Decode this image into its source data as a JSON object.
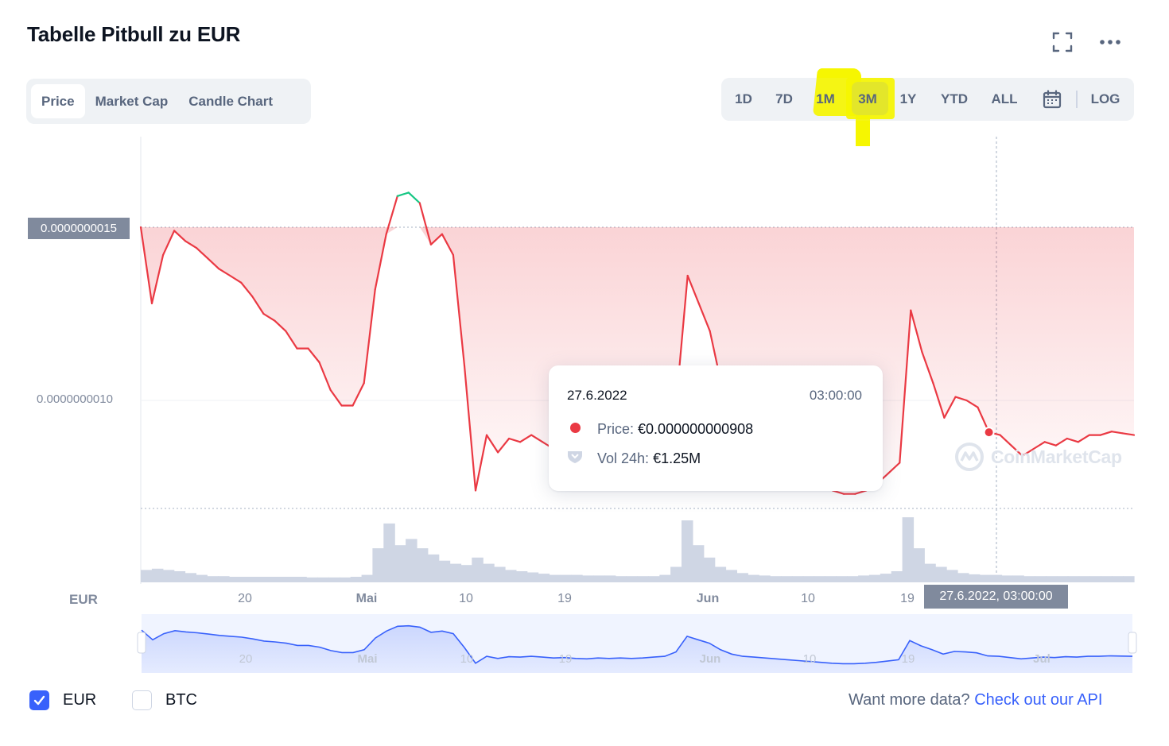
{
  "header": {
    "title": "Tabelle Pitbull zu EUR"
  },
  "tabs": [
    {
      "label": "Price",
      "active": true
    },
    {
      "label": "Market Cap",
      "active": false
    },
    {
      "label": "Candle Chart",
      "active": false
    }
  ],
  "ranges": [
    {
      "label": "1D"
    },
    {
      "label": "7D"
    },
    {
      "label": "1M"
    },
    {
      "label": "3M",
      "active": true
    },
    {
      "label": "1Y"
    },
    {
      "label": "YTD"
    },
    {
      "label": "ALL"
    }
  ],
  "log_label": "LOG",
  "icons": {
    "fullscreen": "fullscreen-icon",
    "more": "more-horizontal-icon",
    "calendar": "calendar-icon",
    "check": "check-icon",
    "volume": "volume-shield-icon",
    "watermark": "coinmarketcap-logo"
  },
  "colors": {
    "up": "#16c784",
    "down": "#ea3943",
    "volume": "#cfd6e4",
    "navigator_line": "#3861fb",
    "highlight": "#f5f500"
  },
  "tooltip": {
    "date": "27.6.2022",
    "time": "03:00:00",
    "price_label": "Price:",
    "price_value": "€0.000000000908",
    "volume_label": "Vol 24h:",
    "volume_value": "€1.25M"
  },
  "crosshair_label": "27.6.2022, 03:00:00",
  "watermark_text": "CoinMarketCap",
  "currency_label": "EUR",
  "currencies": [
    {
      "label": "EUR",
      "checked": true
    },
    {
      "label": "BTC",
      "checked": false
    }
  ],
  "footer": {
    "prefix": "Want more data?",
    "link": "Check out our API"
  },
  "chart_data": {
    "type": "line",
    "title": "Tabelle Pitbull zu EUR",
    "y_unit": "EUR",
    "ylim": [
      7e-10,
      1.7e-09
    ],
    "y_ticks": [
      "0.0000000015",
      "0.0000000010"
    ],
    "y_tick_values": [
      1.5e-09,
      1e-09
    ],
    "baseline_value": 1.5e-09,
    "x_ticks": [
      "20",
      "Mai",
      "10",
      "19",
      "Jun",
      "10",
      "19"
    ],
    "x_ticks_bold": [
      false,
      true,
      false,
      false,
      true,
      false,
      false
    ],
    "navigator_ticks": [
      "20",
      "Mai",
      "10",
      "19",
      "Jun",
      "10",
      "19",
      "Jul"
    ],
    "navigator_ticks_bold": [
      false,
      true,
      false,
      false,
      true,
      false,
      false,
      true
    ],
    "series": [
      {
        "points": [
          [
            "2022-04-12",
            1.5e-09
          ],
          [
            "2022-04-13",
            1.28e-09
          ],
          [
            "2022-04-14",
            1.42e-09
          ],
          [
            "2022-04-15",
            1.49e-09
          ],
          [
            "2022-04-16",
            1.46e-09
          ],
          [
            "2022-04-17",
            1.44e-09
          ],
          [
            "2022-04-18",
            1.41e-09
          ],
          [
            "2022-04-19",
            1.38e-09
          ],
          [
            "2022-04-20",
            1.36e-09
          ],
          [
            "2022-04-21",
            1.34e-09
          ],
          [
            "2022-04-22",
            1.3e-09
          ],
          [
            "2022-04-23",
            1.25e-09
          ],
          [
            "2022-04-24",
            1.23e-09
          ],
          [
            "2022-04-25",
            1.2e-09
          ],
          [
            "2022-04-26",
            1.15e-09
          ],
          [
            "2022-04-27",
            1.15e-09
          ],
          [
            "2022-04-28",
            1.11e-09
          ],
          [
            "2022-04-29",
            1.03e-09
          ],
          [
            "2022-04-30",
            9.85e-10
          ],
          [
            "2022-05-01",
            9.85e-10
          ],
          [
            "2022-05-02",
            1.05e-09
          ],
          [
            "2022-05-03",
            1.32e-09
          ],
          [
            "2022-05-04",
            1.48e-09
          ],
          [
            "2022-05-05",
            1.59e-09
          ],
          [
            "2022-05-06",
            1.6e-09
          ],
          [
            "2022-05-07",
            1.57e-09
          ],
          [
            "2022-05-08",
            1.45e-09
          ],
          [
            "2022-05-09",
            1.48e-09
          ],
          [
            "2022-05-10",
            1.42e-09
          ],
          [
            "2022-05-11",
            1.1e-09
          ],
          [
            "2022-05-12",
            7.4e-10
          ],
          [
            "2022-05-13",
            9e-10
          ],
          [
            "2022-05-14",
            8.5e-10
          ],
          [
            "2022-05-15",
            8.9e-10
          ],
          [
            "2022-05-16",
            8.8e-10
          ],
          [
            "2022-05-17",
            9e-10
          ],
          [
            "2022-05-18",
            8.8e-10
          ],
          [
            "2022-05-19",
            8.6e-10
          ],
          [
            "2022-05-20",
            8.7e-10
          ],
          [
            "2022-05-21",
            8.5e-10
          ],
          [
            "2022-05-22",
            8.4e-10
          ],
          [
            "2022-05-23",
            8.6e-10
          ],
          [
            "2022-05-24",
            8.5e-10
          ],
          [
            "2022-05-25",
            8.6e-10
          ],
          [
            "2022-05-26",
            8.5e-10
          ],
          [
            "2022-05-27",
            8.6e-10
          ],
          [
            "2022-05-28",
            8.8e-10
          ],
          [
            "2022-05-29",
            9e-10
          ],
          [
            "2022-05-30",
            1e-09
          ],
          [
            "2022-05-31",
            1.36e-09
          ],
          [
            "2022-06-01",
            1.28e-09
          ],
          [
            "2022-06-02",
            1.2e-09
          ],
          [
            "2022-06-03",
            1.05e-09
          ],
          [
            "2022-06-04",
            9.5e-10
          ],
          [
            "2022-06-05",
            9e-10
          ],
          [
            "2022-06-06",
            8.8e-10
          ],
          [
            "2022-06-07",
            8.6e-10
          ],
          [
            "2022-06-08",
            8.4e-10
          ],
          [
            "2022-06-09",
            8.2e-10
          ],
          [
            "2022-06-10",
            8e-10
          ],
          [
            "2022-06-11",
            7.8e-10
          ],
          [
            "2022-06-12",
            7.6e-10
          ],
          [
            "2022-06-13",
            7.4e-10
          ],
          [
            "2022-06-14",
            7.3e-10
          ],
          [
            "2022-06-15",
            7.3e-10
          ],
          [
            "2022-06-16",
            7.4e-10
          ],
          [
            "2022-06-17",
            7.6e-10
          ],
          [
            "2022-06-18",
            7.9e-10
          ],
          [
            "2022-06-19",
            8.2e-10
          ],
          [
            "2022-06-20",
            1.26e-09
          ],
          [
            "2022-06-21",
            1.14e-09
          ],
          [
            "2022-06-22",
            1.05e-09
          ],
          [
            "2022-06-23",
            9.5e-10
          ],
          [
            "2022-06-24",
            1.01e-09
          ],
          [
            "2022-06-25",
            1e-09
          ],
          [
            "2022-06-26",
            9.8e-10
          ],
          [
            "2022-06-27",
            9.08e-10
          ],
          [
            "2022-06-28",
            9e-10
          ],
          [
            "2022-06-29",
            8.7e-10
          ],
          [
            "2022-06-30",
            8.4e-10
          ],
          [
            "2022-07-01",
            8.6e-10
          ],
          [
            "2022-07-02",
            8.8e-10
          ],
          [
            "2022-07-03",
            8.7e-10
          ],
          [
            "2022-07-04",
            8.9e-10
          ],
          [
            "2022-07-05",
            8.8e-10
          ],
          [
            "2022-07-06",
            9e-10
          ],
          [
            "2022-07-07",
            9e-10
          ],
          [
            "2022-07-08",
            9.1e-10
          ],
          [
            "2022-07-09",
            9.05e-10
          ],
          [
            "2022-07-10",
            9e-10
          ]
        ]
      }
    ],
    "volume": [
      0.2,
      0.22,
      0.2,
      0.18,
      0.15,
      0.12,
      0.1,
      0.1,
      0.09,
      0.09,
      0.09,
      0.09,
      0.09,
      0.09,
      0.09,
      0.08,
      0.08,
      0.08,
      0.08,
      0.09,
      0.12,
      0.55,
      0.95,
      0.6,
      0.7,
      0.55,
      0.45,
      0.35,
      0.3,
      0.28,
      0.4,
      0.3,
      0.25,
      0.2,
      0.18,
      0.16,
      0.14,
      0.12,
      0.12,
      0.12,
      0.11,
      0.11,
      0.11,
      0.1,
      0.1,
      0.1,
      0.1,
      0.12,
      0.25,
      1.0,
      0.6,
      0.4,
      0.25,
      0.2,
      0.15,
      0.12,
      0.11,
      0.1,
      0.1,
      0.1,
      0.1,
      0.1,
      0.1,
      0.1,
      0.1,
      0.11,
      0.12,
      0.14,
      0.18,
      1.05,
      0.55,
      0.3,
      0.25,
      0.2,
      0.15,
      0.13,
      0.12,
      0.12,
      0.11,
      0.11,
      0.1,
      0.1,
      0.1,
      0.1,
      0.1,
      0.1,
      0.1,
      0.1,
      0.1,
      0.1
    ],
    "hover_point": {
      "date": "27.6.2022",
      "time": "03:00:00",
      "value": 9.08e-10,
      "volume": "€1.25M"
    },
    "grid": true,
    "log_scale": false
  }
}
